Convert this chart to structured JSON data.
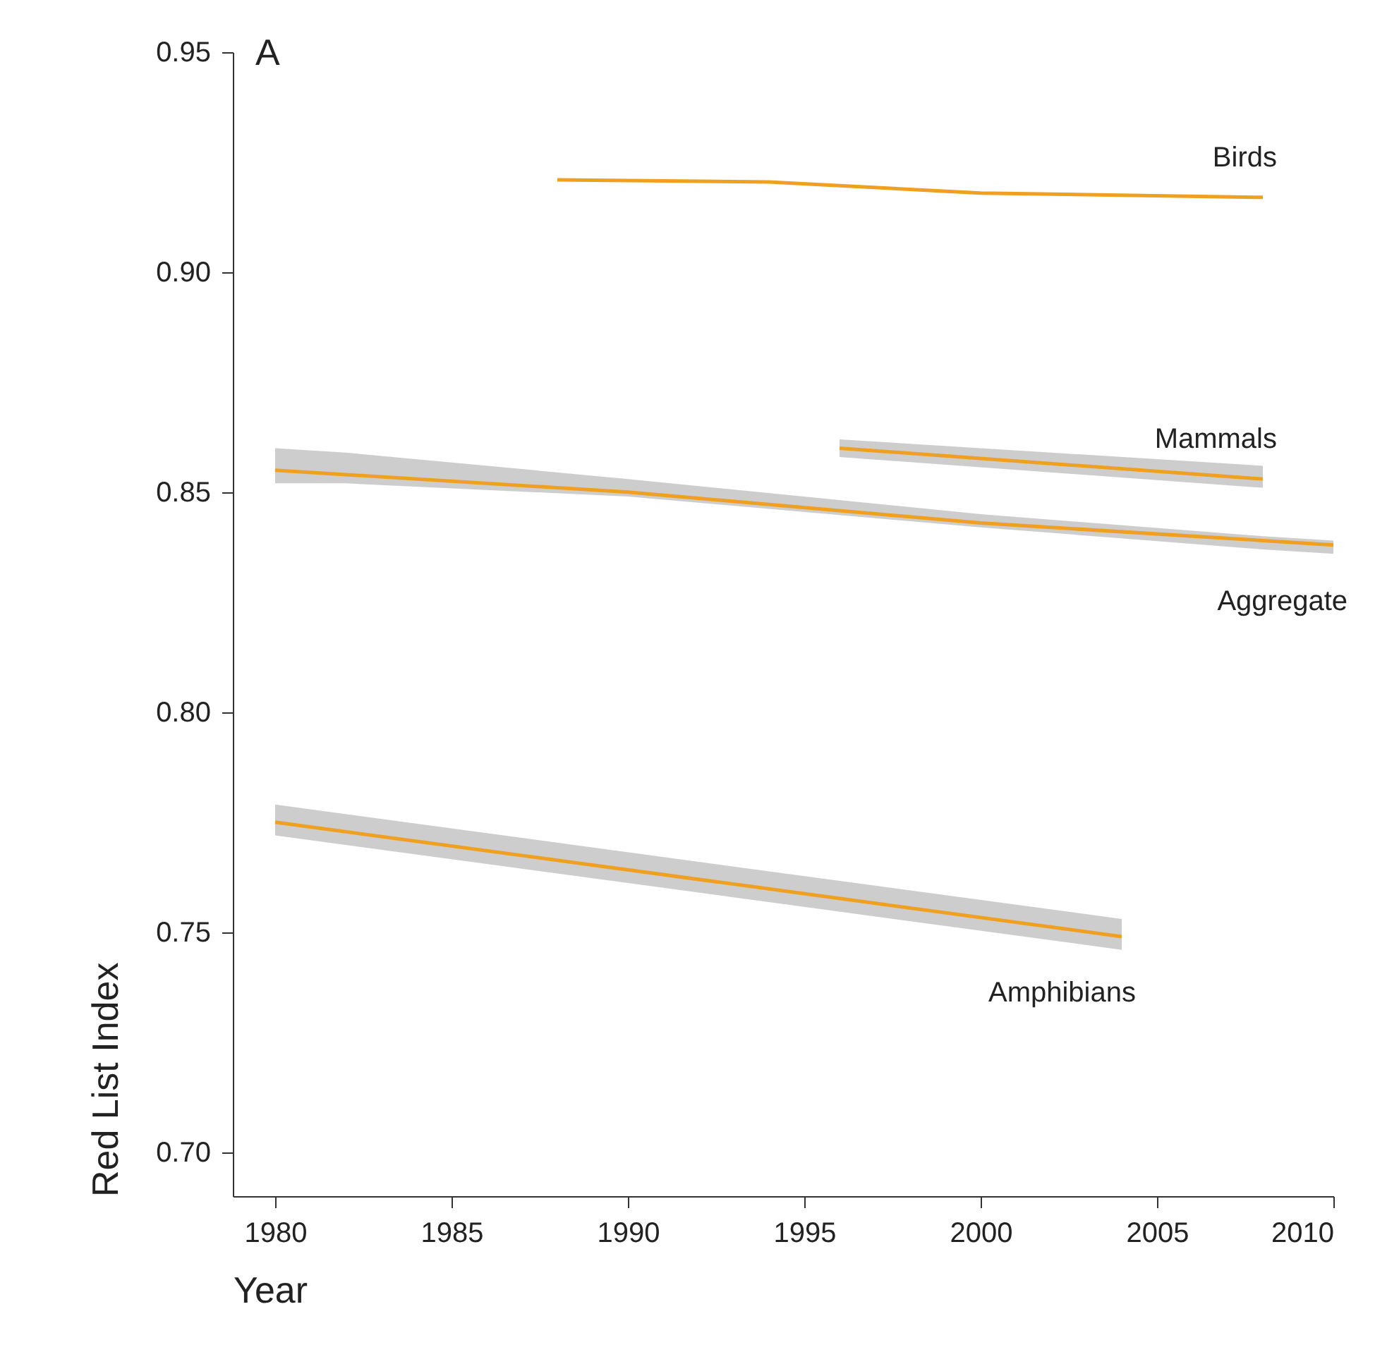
{
  "chart_data": {
    "type": "line",
    "xlabel": "Year",
    "ylabel": "Red List Index",
    "annotations": [
      "A"
    ],
    "xlim": [
      1978.8,
      2010
    ],
    "xticks": [
      1980,
      1985,
      1990,
      1995,
      2000,
      2005,
      2010
    ],
    "ylim": [
      0.69,
      0.95
    ],
    "yticks": [
      {
        "value": 0.7,
        "label": "0.70"
      },
      {
        "value": 0.75,
        "label": "0.75"
      },
      {
        "value": 0.8,
        "label": "0.80"
      },
      {
        "value": 0.85,
        "label": "0.85"
      },
      {
        "value": 0.9,
        "label": "0.90"
      },
      {
        "value": 0.95,
        "label": "0.95"
      }
    ],
    "line_style": "solid",
    "marker": "none",
    "series": [
      {
        "name": "Birds",
        "color": "#f0a020",
        "x": [
          1988,
          1994,
          2000,
          2008
        ],
        "values": [
          0.921,
          0.9205,
          0.918,
          0.917
        ]
      },
      {
        "name": "Mammals",
        "color": "#f0a020",
        "x": [
          1996,
          2008
        ],
        "values": [
          0.86,
          0.853
        ],
        "lower": [
          0.858,
          0.851
        ],
        "upper": [
          0.862,
          0.856
        ]
      },
      {
        "name": "Aggregate",
        "color": "#f0a020",
        "x": [
          1980,
          1982,
          1990,
          2000,
          2008,
          2010
        ],
        "values": [
          0.855,
          0.854,
          0.85,
          0.843,
          0.839,
          0.838
        ],
        "lower": [
          0.852,
          0.852,
          0.849,
          0.842,
          0.837,
          0.836
        ],
        "upper": [
          0.86,
          0.859,
          0.853,
          0.845,
          0.84,
          0.839
        ]
      },
      {
        "name": "Amphibians",
        "color": "#f0a020",
        "x": [
          1980,
          2004
        ],
        "values": [
          0.775,
          0.749
        ],
        "lower": [
          0.772,
          0.746
        ],
        "upper": [
          0.779,
          0.753
        ]
      }
    ]
  }
}
